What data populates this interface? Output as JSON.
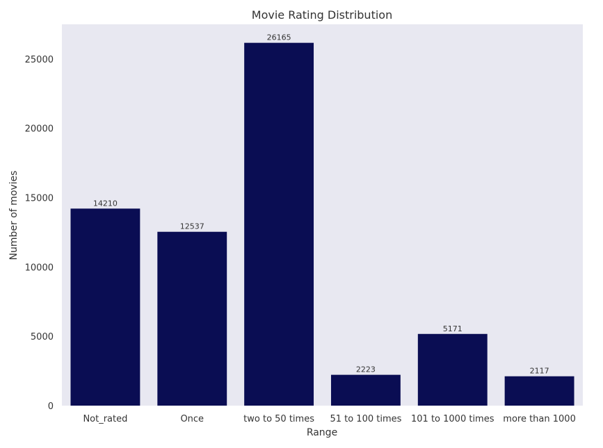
{
  "chart_data": {
    "type": "bar",
    "title": "Movie Rating Distribution",
    "xlabel": "Range",
    "ylabel": "Number of movies",
    "categories": [
      "Not_rated",
      "Once",
      "two to 50 times",
      "51 to 100 times",
      "101 to 1000 times",
      "more than 1000"
    ],
    "values": [
      14210,
      12537,
      26165,
      2223,
      5171,
      2117
    ],
    "value_labels": [
      "14210",
      "12537",
      "26165",
      "2223",
      "5171",
      "2117"
    ],
    "yticks": [
      0,
      5000,
      10000,
      15000,
      20000,
      25000
    ],
    "ytick_labels": [
      "0",
      "5000",
      "10000",
      "15000",
      "20000",
      "25000"
    ],
    "ylim": [
      0,
      27500
    ],
    "grid": false,
    "legend": false,
    "colors": {
      "bar": "#0a0d53",
      "plot_background": "#e8e8f1",
      "text": "#333333"
    }
  }
}
